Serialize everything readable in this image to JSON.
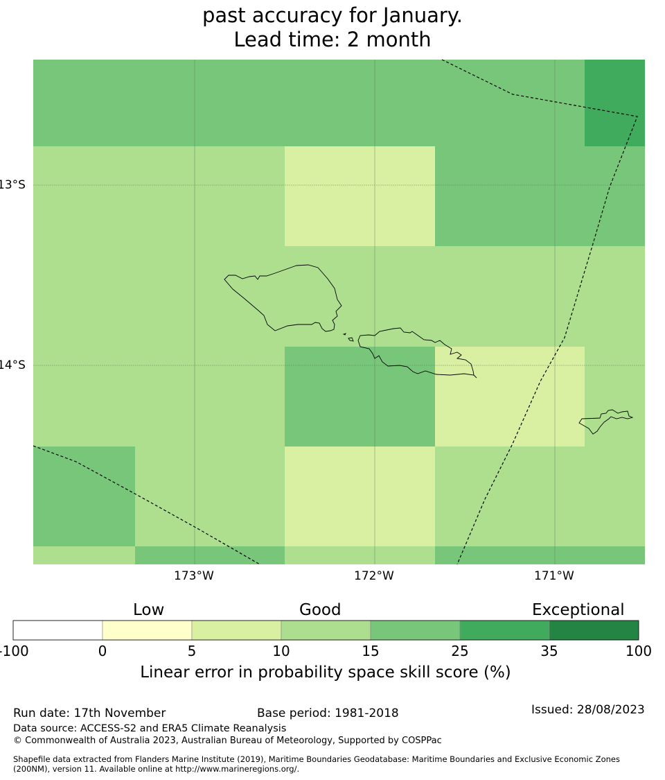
{
  "title": {
    "line1": "past accuracy for January.",
    "line2": "Lead time: 2 month"
  },
  "map": {
    "lat_labels": [
      "13°S",
      "14°S"
    ],
    "lon_labels": [
      "173°W",
      "172°W",
      "171°W"
    ],
    "colors": {
      "c10_15": "#addf8e",
      "c5_10": "#d9f0a3",
      "c15_25": "#78c679",
      "c25_35": "#41ab5d"
    }
  },
  "colorbar": {
    "categories": [
      "Low",
      "Good",
      "Exceptional"
    ],
    "ticks": [
      "-100",
      "0",
      "5",
      "10",
      "15",
      "25",
      "35",
      "100"
    ],
    "colors": [
      "#ffffff",
      "#ffffcc",
      "#d9f0a3",
      "#addd8e",
      "#78c679",
      "#41ab5d",
      "#238443"
    ],
    "label": "Linear error in probability space skill score (%)"
  },
  "footer": {
    "run_date": "Run date: 17th November",
    "base_period": "Base period: 1981-2018",
    "issued": "Issued: 28/08/2023",
    "data_source": "Data source: ACCESS-S2 and ERA5 Climate Reanalysis",
    "copyright": "© Commonwealth of Australia 2023, Australian Bureau of Meteorology, Supported by COSPPac",
    "shapefile_line1": "Shapefile data extracted from Flanders Marine Institute (2019), Maritime Boundaries Geodatabase: Maritime Boundaries and Exclusive Economic Zones",
    "shapefile_line2": "(200NM), version 11. Available online at http://www.marineregions.org/."
  }
}
